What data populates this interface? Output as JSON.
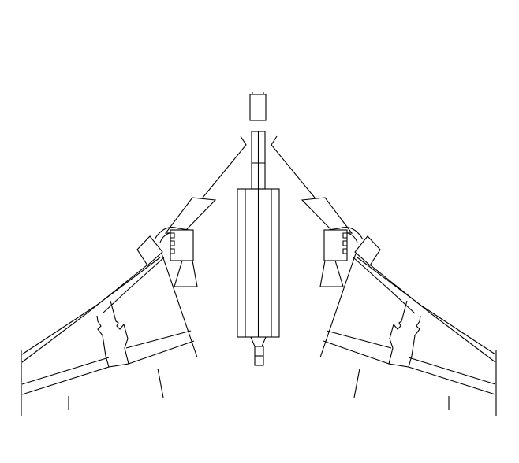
{
  "diagram": {
    "kind": "technical-line-drawing",
    "symmetry": "mirrored-left-right",
    "background": "#ffffff",
    "line_color": "#000000",
    "labels": []
  }
}
